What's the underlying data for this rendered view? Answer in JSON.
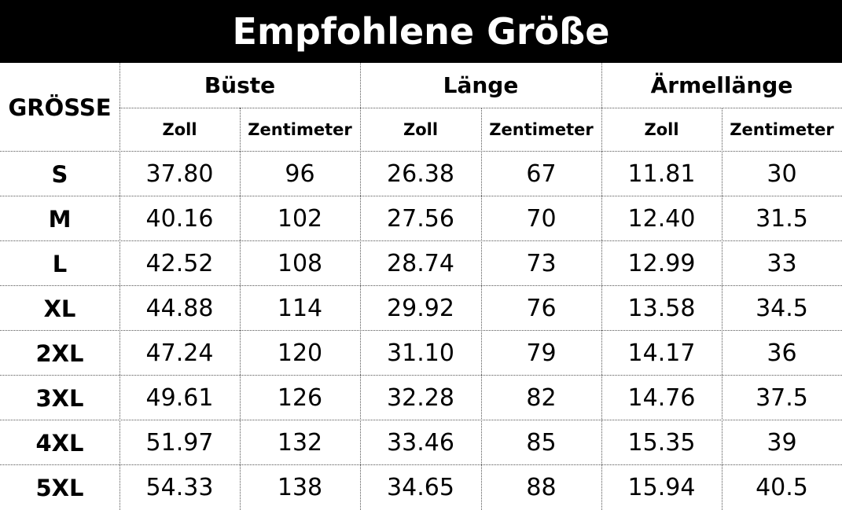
{
  "header": {
    "title": "Empfohlene Größe"
  },
  "table": {
    "size_label": "GRÖSSE",
    "groups": [
      "Büste",
      "Länge",
      "Ärmellänge"
    ],
    "units": [
      "Zoll",
      "Zentimeter",
      "Zoll",
      "Zentimeter",
      "Zoll",
      "Zentimeter"
    ],
    "rows": [
      [
        "S",
        "37.80",
        "96",
        "26.38",
        "67",
        "11.81",
        "30"
      ],
      [
        "M",
        "40.16",
        "102",
        "27.56",
        "70",
        "12.40",
        "31.5"
      ],
      [
        "L",
        "42.52",
        "108",
        "28.74",
        "73",
        "12.99",
        "33"
      ],
      [
        "XL",
        "44.88",
        "114",
        "29.92",
        "76",
        "13.58",
        "34.5"
      ],
      [
        "2XL",
        "47.24",
        "120",
        "31.10",
        "79",
        "14.17",
        "36"
      ],
      [
        "3XL",
        "49.61",
        "126",
        "32.28",
        "82",
        "14.76",
        "37.5"
      ],
      [
        "4XL",
        "51.97",
        "132",
        "33.46",
        "85",
        "15.35",
        "39"
      ],
      [
        "5XL",
        "54.33",
        "138",
        "34.65",
        "88",
        "15.94",
        "40.5"
      ]
    ]
  }
}
